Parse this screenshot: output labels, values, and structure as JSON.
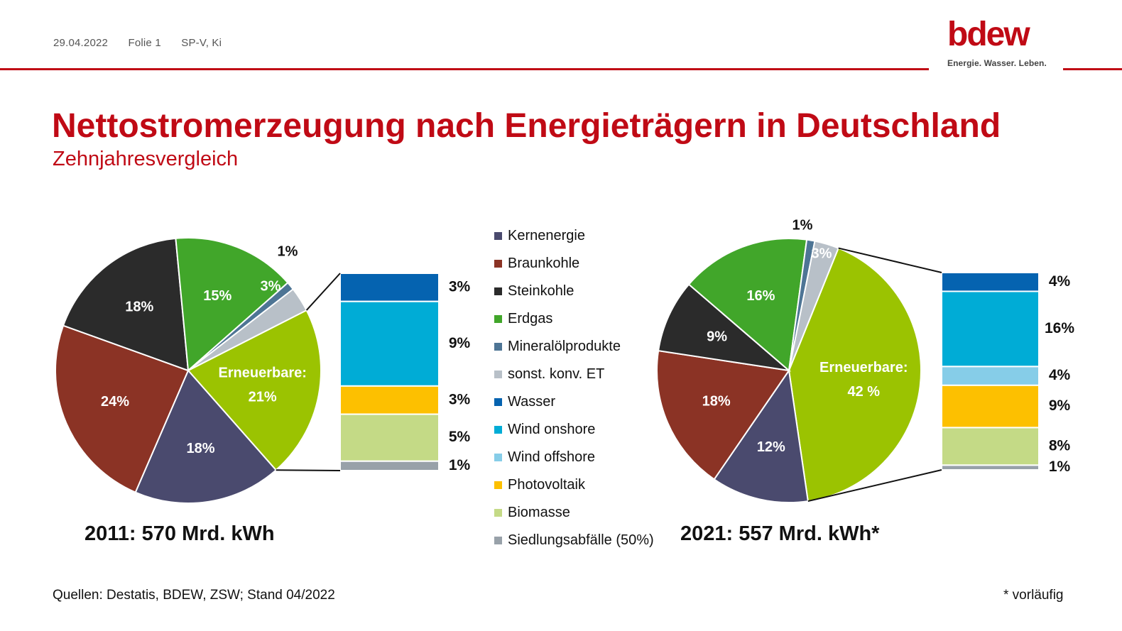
{
  "header": {
    "date": "29.04.2022",
    "slide": "Folie 1",
    "author": "SP-V, Ki",
    "logo_word": "bdew",
    "logo_tagline": "Energie. Wasser. Leben."
  },
  "title": "Nettostromerzeugung nach Energieträgern in Deutschland",
  "subtitle": "Zehnjahresvergleich",
  "colors": {
    "brand_red": "#c00a15",
    "Kernenergie": "#4a4a6e",
    "Braunkohle": "#8b3325",
    "Steinkohle": "#2b2b2b",
    "Erdgas": "#41a62a",
    "Mineralölprodukte": "#4e7595",
    "sonst. konv. ET": "#b8c0c8",
    "Erneuerbare": "#9bc301",
    "Wasser": "#0563b0",
    "Wind onshore": "#00acd6",
    "Wind offshore": "#86cde8",
    "Photovoltaik": "#fdc000",
    "Biomasse": "#c4da86",
    "Siedlungsabfälle (50%)": "#98a1a9"
  },
  "legend": [
    "Kernenergie",
    "Braunkohle",
    "Steinkohle",
    "Erdgas",
    "Mineralölprodukte",
    "sonst. konv. ET",
    "Wasser",
    "Wind onshore",
    "Wind offshore",
    "Photovoltaik",
    "Biomasse",
    "Siedlungsabfälle (50%)"
  ],
  "chart_data": [
    {
      "type": "pie",
      "caption": "2011:  570 Mrd. kWh",
      "slices": [
        {
          "name": "Erneuerbare",
          "value": 21,
          "label": "Erneuerbare:",
          "label2": "21%"
        },
        {
          "name": "Kernenergie",
          "value": 18,
          "label": "18%"
        },
        {
          "name": "Braunkohle",
          "value": 24,
          "label": "24%"
        },
        {
          "name": "Steinkohle",
          "value": 18,
          "label": "18%"
        },
        {
          "name": "Erdgas",
          "value": 15,
          "label": "15%"
        },
        {
          "name": "Mineralölprodukte",
          "value": 1,
          "label": "1%"
        },
        {
          "name": "sonst. konv. ET",
          "value": 3,
          "label": "3%"
        }
      ],
      "renewables_breakdown": [
        {
          "name": "Wasser",
          "value": 3,
          "label": "3%"
        },
        {
          "name": "Wind onshore",
          "value": 9,
          "label": "9%"
        },
        {
          "name": "Photovoltaik",
          "value": 3,
          "label": "3%"
        },
        {
          "name": "Biomasse",
          "value": 5,
          "label": "5%"
        },
        {
          "name": "Siedlungsabfälle (50%)",
          "value": 1,
          "label": "1%"
        }
      ]
    },
    {
      "type": "pie",
      "caption": "2021:  557 Mrd. kWh*",
      "slices": [
        {
          "name": "Erneuerbare",
          "value": 42,
          "label": "Erneuerbare:",
          "label2": "42 %"
        },
        {
          "name": "Kernenergie",
          "value": 12,
          "label": "12%"
        },
        {
          "name": "Braunkohle",
          "value": 18,
          "label": "18%"
        },
        {
          "name": "Steinkohle",
          "value": 9,
          "label": "9%"
        },
        {
          "name": "Erdgas",
          "value": 16,
          "label": "16%"
        },
        {
          "name": "Mineralölprodukte",
          "value": 1,
          "label": "1%"
        },
        {
          "name": "sonst. konv. ET",
          "value": 3,
          "label": "3%"
        }
      ],
      "renewables_breakdown": [
        {
          "name": "Wasser",
          "value": 4,
          "label": "4%"
        },
        {
          "name": "Wind onshore",
          "value": 16,
          "label": "16%"
        },
        {
          "name": "Wind offshore",
          "value": 4,
          "label": "4%"
        },
        {
          "name": "Photovoltaik",
          "value": 9,
          "label": "9%"
        },
        {
          "name": "Biomasse",
          "value": 8,
          "label": "8%"
        },
        {
          "name": "Siedlungsabfälle (50%)",
          "value": 1,
          "label": "1%"
        }
      ]
    }
  ],
  "footer": {
    "source": "Quellen: Destatis, BDEW, ZSW; Stand 04/2022",
    "note": "* vorläufig"
  }
}
